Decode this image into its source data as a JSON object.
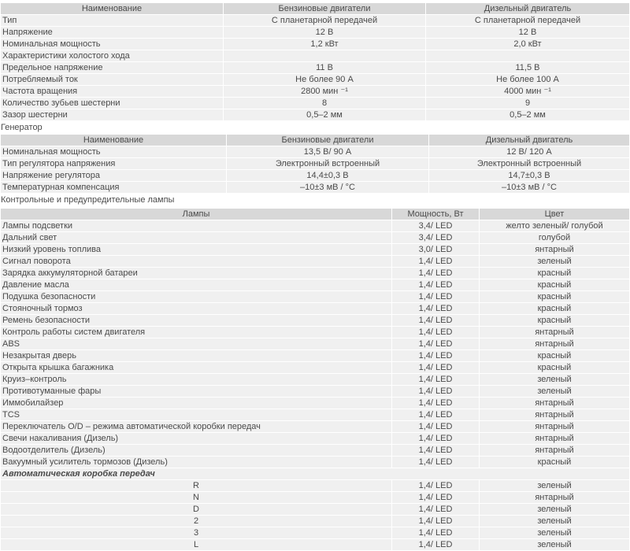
{
  "starter": {
    "headers": [
      "Наименование",
      "Бензиновые двигатели",
      "Дизельный двигатель"
    ],
    "rows": [
      [
        "Тип",
        "С планетарной передачей",
        "С планетарной передачей"
      ],
      [
        "Напряжение",
        "12 В",
        "12 В"
      ],
      [
        "Номинальная мощность",
        "1,2 кВт",
        "2,0 кВт"
      ],
      [
        "Характеристики холостого хода",
        "",
        ""
      ],
      [
        "Предельное напряжение",
        "11 В",
        "11,5 В"
      ],
      [
        "Потребляемый ток",
        "Не более 90 А",
        "Не более 100 А"
      ],
      [
        "Частота вращения",
        "2800 мин ⁻¹",
        "4000 мин ⁻¹"
      ],
      [
        "Количество зубьев шестерни",
        "8",
        "9"
      ],
      [
        "Зазор шестерни",
        "0,5–2 мм",
        "0,5–2 мм"
      ]
    ]
  },
  "generator_caption": "Генератор",
  "generator": {
    "headers": [
      "Наименование",
      "Бензиновые двигатели",
      "Дизельный двигатель"
    ],
    "rows": [
      [
        "Номинальная мощность",
        "13,5 В/ 90 А",
        "12 В/ 120 А"
      ],
      [
        "Тип регулятора напряжения",
        "Электронный встроенный",
        "Электронный встроенный"
      ],
      [
        "Напряжение регулятора",
        "14,4±0,3 В",
        "14,7±0,3 В"
      ],
      [
        "Температурная компенсация",
        "–10±3 мВ / °C",
        "–10±3 мВ / °C"
      ]
    ]
  },
  "lamps_caption": "Контрольные и предупредительные лампы",
  "lamps": {
    "headers": [
      "Лампы",
      "Мощность, Вт",
      "Цвет"
    ],
    "rows": [
      [
        "Лампы подсветки",
        "3,4/ LED",
        "желто зеленый/ голубой"
      ],
      [
        "Дальний свет",
        "3,4/ LED",
        "голубой"
      ],
      [
        "Низкий уровень топлива",
        "3,0/ LED",
        "янтарный"
      ],
      [
        "Сигнал поворота",
        "1,4/ LED",
        "зеленый"
      ],
      [
        "Зарядка аккумуляторной батареи",
        "1,4/ LED",
        "красный"
      ],
      [
        "Давление масла",
        "1,4/ LED",
        "красный"
      ],
      [
        "Подушка безопасности",
        "1,4/ LED",
        "красный"
      ],
      [
        "Стояночный тормоз",
        "1,4/ LED",
        "красный"
      ],
      [
        "Ремень безопасности",
        "1,4/ LED",
        "красный"
      ],
      [
        "Контроль работы систем двигателя",
        "1,4/ LED",
        "янтарный"
      ],
      [
        "ABS",
        "1,4/ LED",
        "янтарный"
      ],
      [
        "Незакрытая дверь",
        "1,4/ LED",
        "красный"
      ],
      [
        "Открыта крышка багажника",
        "1,4/ LED",
        "красный"
      ],
      [
        "Круиз–контроль",
        "1,4/ LED",
        "зеленый"
      ],
      [
        "Противотуманные фары",
        "1,4/ LED",
        "зеленый"
      ],
      [
        "Иммобилайзер",
        "1,4/ LED",
        "янтарный"
      ],
      [
        "TCS",
        "1,4/ LED",
        "янтарный"
      ],
      [
        "Переключатель O/D – режима автоматической коробки передач",
        "1,4/ LED",
        "янтарный"
      ],
      [
        "Свечи накаливания (Дизель)",
        "1,4/ LED",
        "янтарный"
      ],
      [
        "Водоотделитель (Дизель)",
        "1,4/ LED",
        "янтарный"
      ],
      [
        "Вакуумный усилитель тормозов (Дизель)",
        "1,4/ LED",
        "красный"
      ]
    ],
    "section": "Автоматическая коробка передач",
    "gear_rows": [
      [
        "R",
        "1,4/ LED",
        "зеленый"
      ],
      [
        "N",
        "1,4/ LED",
        "янтарный"
      ],
      [
        "D",
        "1,4/ LED",
        "зеленый"
      ],
      [
        "2",
        "1,4/ LED",
        "зеленый"
      ],
      [
        "3",
        "1,4/ LED",
        "зеленый"
      ],
      [
        "L",
        "1,4/ LED",
        "зеленый"
      ]
    ]
  }
}
